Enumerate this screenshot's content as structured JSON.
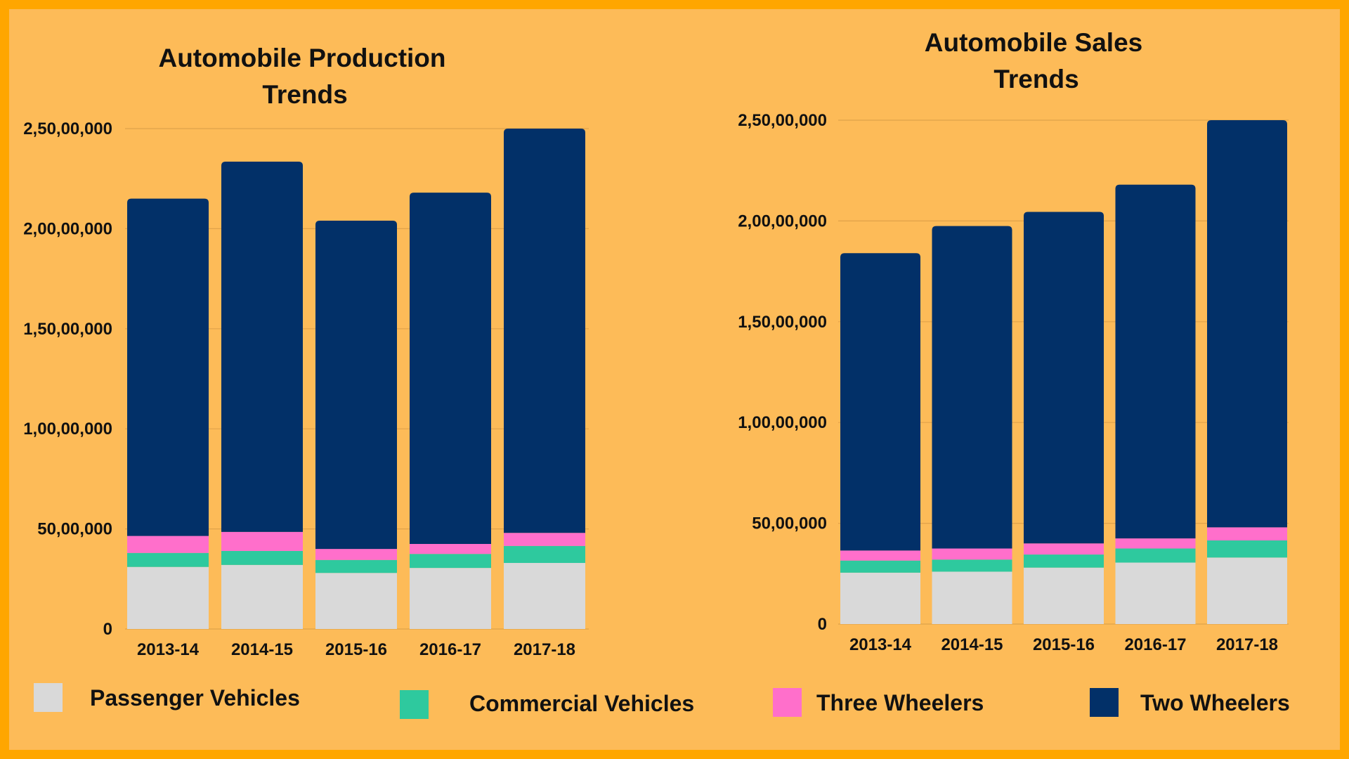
{
  "colors": {
    "passenger": "#D9D9D9",
    "commercial": "#2EC99E",
    "three": "#FF6FCB",
    "two": "#023068",
    "background": "#FDBB58",
    "border": "#FFA600"
  },
  "legend": [
    {
      "label": "Passenger Vehicles",
      "color": "#D9D9D9"
    },
    {
      "label": "Commercial Vehicles",
      "color": "#2EC99E"
    },
    {
      "label": "Three Wheelers",
      "color": "#FF6FCB"
    },
    {
      "label": "Two Wheelers",
      "color": "#023068"
    }
  ],
  "chart_data": [
    {
      "type": "bar",
      "stacked": true,
      "title": [
        "Automobile Production",
        "Trends"
      ],
      "categories": [
        "2013-14",
        "2014-15",
        "2015-16",
        "2016-17",
        "2017-18"
      ],
      "yticks": [
        "0",
        "50,00,000",
        "1,00,00,000",
        "1,50,00,000",
        "2,00,00,000",
        "2,50,00,000"
      ],
      "ylim": [
        0,
        25000000
      ],
      "grid": true,
      "series": [
        {
          "name": "Passenger Vehicles",
          "values": [
            3100000,
            3200000,
            2800000,
            3050000,
            3300000
          ]
        },
        {
          "name": "Commercial Vehicles",
          "values": [
            700000,
            700000,
            650000,
            700000,
            850000
          ]
        },
        {
          "name": "Three Wheelers",
          "values": [
            850000,
            950000,
            550000,
            500000,
            650000
          ]
        },
        {
          "name": "Two Wheelers",
          "values": [
            16850000,
            18500000,
            16400000,
            17550000,
            20200000
          ]
        }
      ]
    },
    {
      "type": "bar",
      "stacked": true,
      "title": [
        "Automobile Sales",
        "Trends"
      ],
      "categories": [
        "2013-14",
        "2014-15",
        "2015-16",
        "2016-17",
        "2017-18"
      ],
      "yticks": [
        "0",
        "50,00,000",
        "1,00,00,000",
        "1,50,00,000",
        "2,00,00,000",
        "2,50,00,000"
      ],
      "ylim": [
        0,
        25000000
      ],
      "grid": true,
      "series": [
        {
          "name": "Passenger Vehicles",
          "values": [
            2550000,
            2600000,
            2800000,
            3050000,
            3300000
          ]
        },
        {
          "name": "Commercial Vehicles",
          "values": [
            600000,
            600000,
            650000,
            700000,
            850000
          ]
        },
        {
          "name": "Three Wheelers",
          "values": [
            500000,
            550000,
            550000,
            500000,
            650000
          ]
        },
        {
          "name": "Two Wheelers",
          "values": [
            14750000,
            16000000,
            16450000,
            17550000,
            20200000
          ]
        }
      ]
    }
  ]
}
